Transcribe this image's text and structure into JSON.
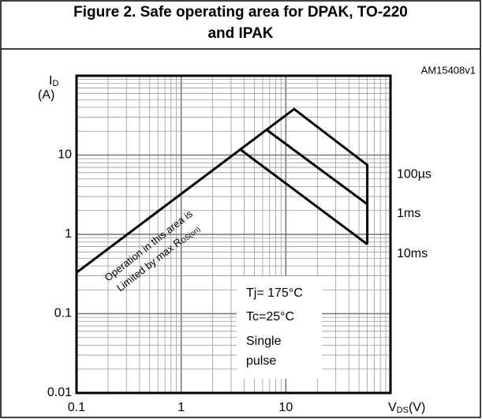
{
  "chart_data": {
    "type": "line",
    "title": [
      "Figure 2. Safe operating area for DPAK, TO-220",
      "and IPAK"
    ],
    "code": "AM15408v1",
    "ylabel": {
      "main": "I",
      "sub": "D",
      "unit": "(A)"
    },
    "xlabel": {
      "main": "V",
      "sub": "DS",
      "unit": "(V)"
    },
    "log_x": true,
    "log_y": true,
    "grid": true,
    "minor_grid": true,
    "xlim": [
      0.1,
      100
    ],
    "ylim": [
      0.01,
      100
    ],
    "xticks": [
      0.1,
      1,
      10
    ],
    "yticks": [
      0.01,
      0.1,
      1,
      10
    ],
    "color": "#000000",
    "series": [
      {
        "name": "100µs",
        "x": [
          0.1,
          12,
          60,
          60
        ],
        "values": [
          0.33,
          38,
          7.5,
          0.75
        ]
      },
      {
        "name": "1ms",
        "x": [
          6.5,
          60
        ],
        "values": [
          21,
          2.4
        ]
      },
      {
        "name": "10ms",
        "x": [
          3.6,
          60
        ],
        "values": [
          12,
          0.75
        ]
      }
    ],
    "annotations": {
      "region": [
        "Operation in this area is",
        "Limited by max R",
        "DS(on)"
      ],
      "conditions": [
        "Tj= 175°C",
        "Tc=25°C",
        "Single",
        "pulse"
      ]
    }
  }
}
